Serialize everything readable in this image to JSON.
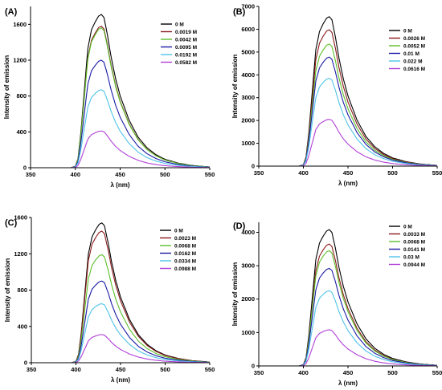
{
  "chart_data": [
    {
      "type": "line",
      "panel_label": "(A)",
      "xlabel": "λ (nm)",
      "ylabel": "Intensity of emission",
      "xlim": [
        350,
        550
      ],
      "ylim": [
        0,
        1800
      ],
      "x_ticks": [
        350,
        400,
        450,
        500,
        550
      ],
      "y_ticks": [
        0,
        400,
        800,
        1200,
        1600
      ],
      "legend_position": "top-right",
      "series": [
        {
          "name": "0 M",
          "color": "#000000",
          "peak": 1710
        },
        {
          "name": "0.0019 M",
          "color": "#8b1a1a",
          "peak": 1580
        },
        {
          "name": "0.0042 M",
          "color": "#5cbf2a",
          "peak": 1560
        },
        {
          "name": "0.0095 M",
          "color": "#1a1aa6",
          "peak": 1200
        },
        {
          "name": "0.0192 M",
          "color": "#4fc3e8",
          "peak": 870
        },
        {
          "name": "0.0582 M",
          "color": "#b03fd6",
          "peak": 410
        }
      ]
    },
    {
      "type": "line",
      "panel_label": "(B)",
      "xlabel": "λ (nm)",
      "ylabel": "Intensity of emission",
      "xlim": [
        350,
        550
      ],
      "ylim": [
        0,
        7000
      ],
      "x_ticks": [
        350,
        400,
        450,
        500,
        550
      ],
      "y_ticks": [
        0,
        1000,
        2000,
        3000,
        4000,
        5000,
        6000,
        7000
      ],
      "legend_position": "top-right",
      "series": [
        {
          "name": "0 M",
          "color": "#000000",
          "peak": 6550
        },
        {
          "name": "0.0026 M",
          "color": "#8b1a1a",
          "peak": 5980
        },
        {
          "name": "0.0052 M",
          "color": "#5cbf2a",
          "peak": 5350
        },
        {
          "name": "0.01 M",
          "color": "#1a1aa6",
          "peak": 4780
        },
        {
          "name": "0.022 M",
          "color": "#4fc3e8",
          "peak": 3850
        },
        {
          "name": "0.0616 M",
          "color": "#b03fd6",
          "peak": 2050
        }
      ]
    },
    {
      "type": "line",
      "panel_label": "(C)",
      "xlabel": "λ (nm)",
      "ylabel": "Intensity of emission",
      "xlim": [
        350,
        550
      ],
      "ylim": [
        0,
        1600
      ],
      "x_ticks": [
        350,
        400,
        450,
        500,
        550
      ],
      "y_ticks": [
        0,
        400,
        800,
        1200,
        1600
      ],
      "legend_position": "top-right",
      "series": [
        {
          "name": "0 M",
          "color": "#000000",
          "peak": 1540
        },
        {
          "name": "0.0023 M",
          "color": "#8b1a1a",
          "peak": 1450
        },
        {
          "name": "0.0068 M",
          "color": "#5cbf2a",
          "peak": 1190
        },
        {
          "name": "0.0162 M",
          "color": "#1a1aa6",
          "peak": 900
        },
        {
          "name": "0.0334 M",
          "color": "#4fc3e8",
          "peak": 650
        },
        {
          "name": "0.0988 M",
          "color": "#b03fd6",
          "peak": 310
        }
      ]
    },
    {
      "type": "line",
      "panel_label": "(D)",
      "xlabel": "λ (nm)",
      "ylabel": "Intensity of emission",
      "xlim": [
        350,
        550
      ],
      "ylim": [
        0,
        4300
      ],
      "x_ticks": [
        350,
        400,
        450,
        500,
        550
      ],
      "y_ticks": [
        0,
        1000,
        2000,
        3000,
        4000
      ],
      "legend_position": "top-right",
      "series": [
        {
          "name": "0 M",
          "color": "#000000",
          "peak": 4080
        },
        {
          "name": "0.0033 M",
          "color": "#8b1a1a",
          "peak": 3650
        },
        {
          "name": "0.0068 M",
          "color": "#5cbf2a",
          "peak": 3450
        },
        {
          "name": "0.0141 M",
          "color": "#1a1aa6",
          "peak": 2920
        },
        {
          "name": "0.03 M",
          "color": "#4fc3e8",
          "peak": 2250
        },
        {
          "name": "0.0944 M",
          "color": "#b03fd6",
          "peak": 1080
        }
      ]
    }
  ]
}
